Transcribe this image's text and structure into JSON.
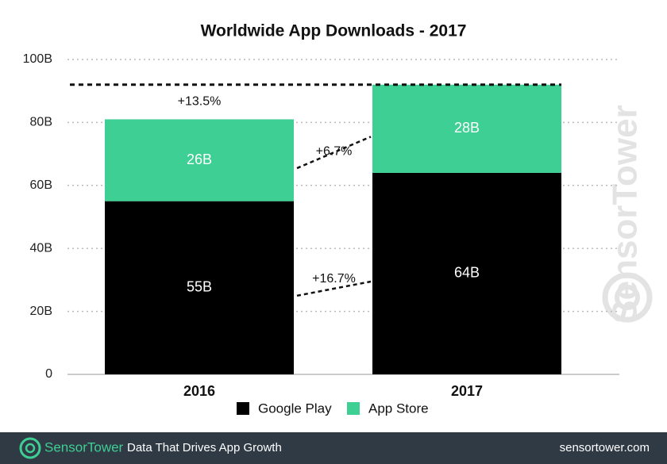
{
  "chart_data": {
    "type": "stacked-bar",
    "title": "Worldwide App Downloads - 2017",
    "categories": [
      "2016",
      "2017"
    ],
    "series": [
      {
        "name": "Google Play",
        "color": "#000000",
        "values": [
          55,
          64
        ],
        "value_labels": [
          "55B",
          "64B"
        ]
      },
      {
        "name": "App Store",
        "color": "#3ecf94",
        "values": [
          26,
          28
        ],
        "value_labels": [
          "26B",
          "28B"
        ]
      }
    ],
    "ylim": [
      0,
      100
    ],
    "yticks": [
      0,
      {
        "value": 20,
        "label": "20B"
      },
      {
        "value": 40,
        "label": "40B"
      },
      {
        "value": 60,
        "label": "60B"
      },
      {
        "value": 80,
        "label": "80B"
      },
      {
        "value": 100,
        "label": "100B"
      }
    ],
    "grid": true,
    "annotations": [
      "+13.5%",
      "+6.7%",
      "+16.7%"
    ]
  },
  "watermark": "SensorTower",
  "footer": {
    "brand": "SensorTower",
    "tagline": "Data That Drives App Growth",
    "url": "sensortower.com"
  }
}
